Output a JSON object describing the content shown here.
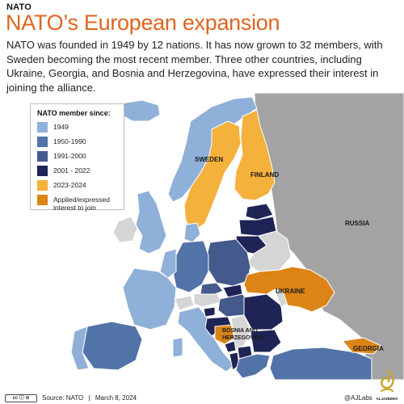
{
  "header": {
    "kicker": "NATO",
    "title": "NATO’s European expansion",
    "deck": "NATO was founded in 1949 by 12 nations. It has now grown to 32 members, with Sweden becoming the most recent member. Three other countries, including Ukraine, Georgia, and Bosnia and Herzegovina, have expressed their interest in joining the alliance."
  },
  "legend": {
    "title": "NATO member since:",
    "items": [
      {
        "label": "1949",
        "color": "#8fb0d8"
      },
      {
        "label": "1950-1990",
        "color": "#5273a8"
      },
      {
        "label": "1991-2000",
        "color": "#44598c"
      },
      {
        "label": "2001 - 2022",
        "color": "#1f2456"
      },
      {
        "label": "2023-2024",
        "color": "#f4b13c"
      },
      {
        "label": "Applied/expressed interest to join",
        "color": "#dc8416"
      }
    ]
  },
  "map": {
    "colors": {
      "sea": "#ffffff",
      "russia": "#a3a3a3",
      "non_member": "#d5d5d5",
      "border": "#ffffff"
    },
    "labels": {
      "sweden": "SWEDEN",
      "finland": "FINLAND",
      "russia": "RUSSIA",
      "ukraine": "UKRAINE",
      "georgia": "GEORGIA",
      "bosnia": "BOSNIA AND HERZEGOVINA"
    }
  },
  "footer": {
    "license": "cc ⓘ ⊜",
    "source_label": "Source: NATO",
    "separator": "|",
    "date": "March 8, 2024",
    "credit": "@AJLabs",
    "logo_text": "ALJAZEERA"
  }
}
